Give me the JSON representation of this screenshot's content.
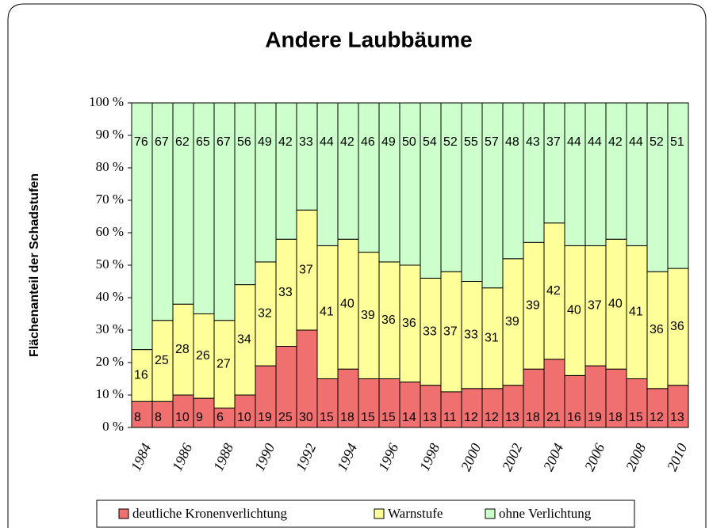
{
  "chart_data": {
    "type": "stacked_bar",
    "title": "Andere Laubbäume",
    "y_label": "Flächenanteil der Schadstufen",
    "categories": [
      "1984",
      null,
      "1986",
      null,
      "1988",
      null,
      "1990",
      null,
      "1992",
      null,
      "1994",
      null,
      "1996",
      null,
      "1998",
      null,
      "2000",
      null,
      "2002",
      null,
      "2004",
      null,
      "2006",
      null,
      "2008",
      null,
      "2010"
    ],
    "series": [
      {
        "name": "deutliche Kronenverlichtung",
        "color": "#f07070",
        "values": [
          8,
          8,
          10,
          9,
          6,
          10,
          19,
          25,
          30,
          15,
          18,
          15,
          15,
          14,
          13,
          11,
          12,
          12,
          13,
          18,
          21,
          16,
          19,
          18,
          15,
          12,
          13
        ]
      },
      {
        "name": "Warnstufe",
        "color": "#ffff99",
        "values": [
          16,
          25,
          28,
          26,
          27,
          34,
          32,
          33,
          37,
          41,
          40,
          39,
          36,
          36,
          33,
          37,
          33,
          31,
          39,
          39,
          42,
          40,
          37,
          40,
          41,
          36,
          36
        ]
      },
      {
        "name": "ohne Verlichtung",
        "color": "#ccffcc",
        "values": [
          76,
          67,
          62,
          65,
          67,
          56,
          49,
          42,
          33,
          44,
          42,
          46,
          49,
          50,
          54,
          52,
          55,
          57,
          48,
          43,
          37,
          44,
          44,
          42,
          44,
          52,
          51
        ]
      }
    ],
    "ylim": [
      0,
      100
    ],
    "yticks": [
      {
        "value": 0,
        "label": "0 %"
      },
      {
        "value": 10,
        "label": "10 %"
      },
      {
        "value": 20,
        "label": "20 %"
      },
      {
        "value": 30,
        "label": "30 %"
      },
      {
        "value": 40,
        "label": "40 %"
      },
      {
        "value": 50,
        "label": "50 %"
      },
      {
        "value": 60,
        "label": "60 %"
      },
      {
        "value": 70,
        "label": "70 %"
      },
      {
        "value": 80,
        "label": "80 %"
      },
      {
        "value": 90,
        "label": "90 %"
      },
      {
        "value": 100,
        "label": "100 %"
      }
    ]
  }
}
